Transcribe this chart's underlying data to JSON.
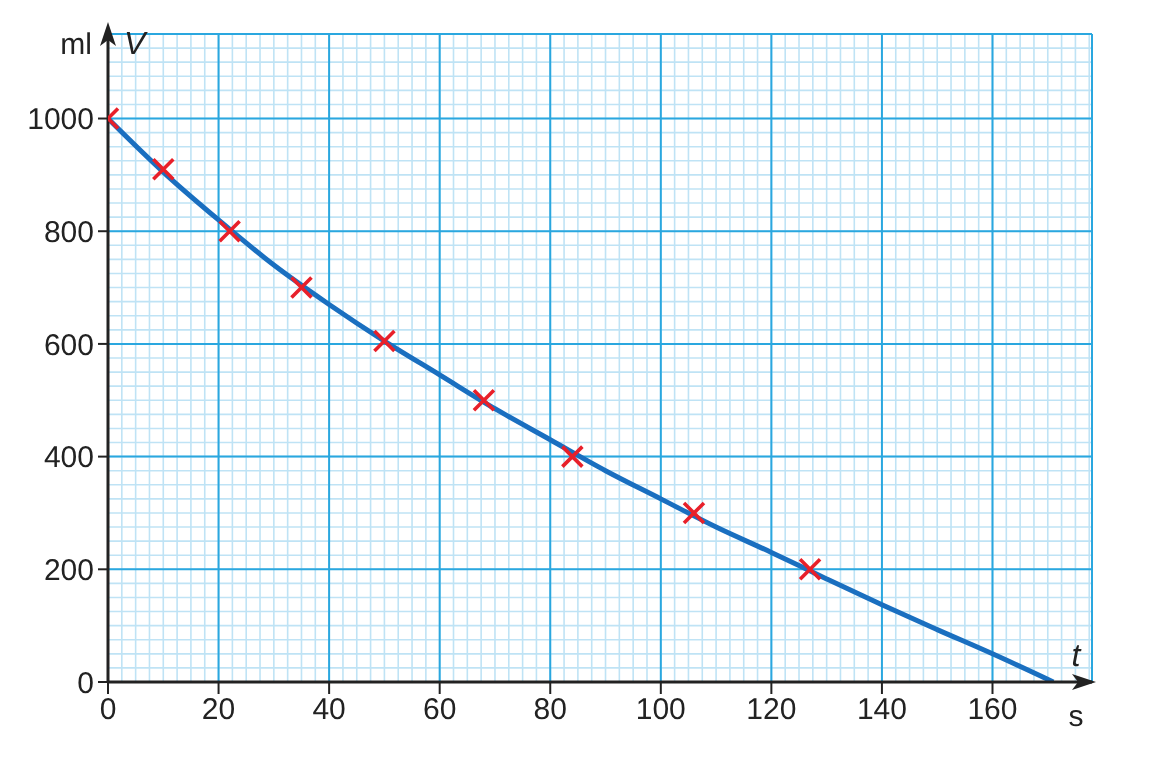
{
  "chart_data": {
    "type": "line",
    "xlabel": "t",
    "ylabel": "V",
    "annotations": [
      "ml",
      "s"
    ],
    "xlim": [
      0,
      178
    ],
    "xticks": [
      0,
      20,
      40,
      60,
      80,
      100,
      120,
      140,
      160
    ],
    "ylim": [
      0,
      1150
    ],
    "yticks": [
      0,
      200,
      400,
      600,
      800,
      1000
    ],
    "grid": true,
    "series": [
      {
        "color": "#1a6fc0",
        "marker": "none",
        "x": [
          0,
          10,
          20,
          30,
          40,
          50,
          60,
          70,
          80,
          90,
          100,
          110,
          120,
          130,
          140,
          150,
          160,
          171
        ],
        "values": [
          1000,
          905,
          820,
          740,
          670,
          605,
          545,
          485,
          430,
          375,
          325,
          275,
          230,
          183,
          137,
          93,
          50,
          0
        ]
      },
      {
        "type": "scatter",
        "color": "#e8202a",
        "marker": "cross",
        "x": [
          0,
          10,
          22,
          35,
          50,
          68,
          84,
          106,
          127
        ],
        "values": [
          1000,
          910,
          800,
          700,
          605,
          500,
          400,
          300,
          200
        ]
      }
    ]
  }
}
